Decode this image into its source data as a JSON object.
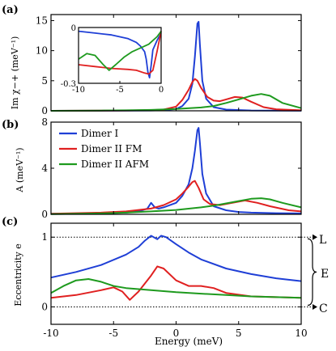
{
  "chart_data": [
    {
      "type": "line",
      "panel_label": "(a)",
      "ylabel": "Im χ−+ (meV⁻¹)",
      "xlim": [
        -10,
        10
      ],
      "ylim": [
        0,
        16
      ],
      "yticks": [
        "0",
        "5",
        "10",
        "15"
      ],
      "series": [
        {
          "color": "#1f3fd6",
          "x": [
            -10,
            -6,
            -4,
            -2,
            -1,
            0,
            0.5,
            1,
            1.3,
            1.5,
            1.7,
            1.8,
            1.9,
            2.1,
            2.4,
            3,
            4,
            6,
            8,
            10
          ],
          "y": [
            0,
            0.02,
            0.03,
            0.05,
            0.1,
            0.3,
            0.8,
            2,
            4.5,
            9,
            14.5,
            14.8,
            11,
            5,
            2,
            0.6,
            0.2,
            0.06,
            0.03,
            0.02
          ]
        },
        {
          "color": "#e02020",
          "x": [
            -10,
            -6,
            -4,
            -2,
            -1,
            0,
            0.5,
            1,
            1.3,
            1.5,
            1.7,
            2,
            2.5,
            3,
            3.5,
            4,
            4.7,
            5.3,
            6,
            7,
            8,
            10
          ],
          "y": [
            0,
            0.03,
            0.05,
            0.1,
            0.2,
            0.7,
            1.8,
            3.5,
            4.8,
            5.3,
            5,
            3.8,
            2.3,
            1.7,
            1.6,
            1.9,
            2.3,
            2.2,
            1.5,
            0.6,
            0.25,
            0.08
          ]
        },
        {
          "color": "#1e9a1e",
          "x": [
            -10,
            -6,
            -4,
            -2,
            0,
            2,
            3,
            4,
            5,
            6,
            6.8,
            7.5,
            8.5,
            10
          ],
          "y": [
            0,
            0.04,
            0.08,
            0.15,
            0.3,
            0.55,
            0.8,
            1.3,
            1.9,
            2.5,
            2.8,
            2.5,
            1.3,
            0.45
          ]
        }
      ],
      "inset": {
        "xlim": [
          -10,
          0
        ],
        "ylim": [
          -0.3,
          0
        ],
        "xticks": [
          "-10",
          "-5",
          "0"
        ],
        "yticks": [
          "0",
          "-0.3"
        ],
        "series": [
          {
            "color": "#1f3fd6",
            "x": [
              -10,
              -8,
              -6,
              -4,
              -3,
              -2.5,
              -2,
              -1.8,
              -1.6,
              -1.4,
              -1.2,
              -1,
              -0.5,
              0
            ],
            "y": [
              -0.02,
              -0.03,
              -0.04,
              -0.06,
              -0.08,
              -0.1,
              -0.13,
              -0.17,
              -0.24,
              -0.27,
              -0.2,
              -0.12,
              -0.07,
              -0.03
            ]
          },
          {
            "color": "#e02020",
            "x": [
              -10,
              -8,
              -6,
              -4,
              -3,
              -2,
              -1.5,
              -1,
              -0.5,
              0
            ],
            "y": [
              -0.2,
              -0.21,
              -0.22,
              -0.225,
              -0.23,
              -0.245,
              -0.25,
              -0.23,
              -0.13,
              -0.02
            ]
          },
          {
            "color": "#1e9a1e",
            "x": [
              -10,
              -9,
              -8,
              -7,
              -6.3,
              -5.5,
              -4.5,
              -3.5,
              -2.5,
              -1.5,
              -1,
              -0.5,
              0
            ],
            "y": [
              -0.17,
              -0.14,
              -0.15,
              -0.2,
              -0.23,
              -0.2,
              -0.16,
              -0.13,
              -0.11,
              -0.09,
              -0.07,
              -0.05,
              -0.02
            ]
          }
        ]
      }
    },
    {
      "type": "line",
      "panel_label": "(b)",
      "ylabel": "A (meV⁻¹)",
      "xlim": [
        -10,
        10
      ],
      "ylim": [
        0,
        8
      ],
      "yticks": [
        "0",
        "4",
        "8"
      ],
      "legend": {
        "placement": "top-left",
        "entries": [
          {
            "label": "Dimer I",
            "color": "#1f3fd6"
          },
          {
            "label": "Dimer II FM",
            "color": "#e02020"
          },
          {
            "label": "Dimer II AFM",
            "color": "#1e9a1e"
          }
        ]
      },
      "series": [
        {
          "color": "#1f3fd6",
          "x": [
            -10,
            -6,
            -4,
            -3,
            -2.3,
            -2,
            -1.7,
            -1.4,
            -1,
            0,
            0.5,
            1,
            1.3,
            1.5,
            1.7,
            1.8,
            1.9,
            2.1,
            2.4,
            3,
            4,
            5,
            6,
            8,
            10
          ],
          "y": [
            0.05,
            0.1,
            0.15,
            0.25,
            0.5,
            1,
            0.6,
            0.5,
            0.6,
            1,
            1.6,
            2.6,
            4,
            5.5,
            7.3,
            7.5,
            6.2,
            3.5,
            1.8,
            0.7,
            0.35,
            0.2,
            0.15,
            0.1,
            0.08
          ]
        },
        {
          "color": "#e02020",
          "x": [
            -10,
            -6,
            -4,
            -2,
            -1,
            0,
            0.5,
            1,
            1.3,
            1.5,
            1.8,
            2.2,
            2.7,
            3.5,
            4.5,
            5.5,
            6.5,
            7.5,
            9,
            10
          ],
          "y": [
            0.05,
            0.15,
            0.25,
            0.5,
            0.8,
            1.3,
            1.8,
            2.4,
            2.8,
            2.9,
            2.3,
            1.3,
            0.9,
            0.8,
            1,
            1.2,
            1,
            0.7,
            0.35,
            0.25
          ]
        },
        {
          "color": "#1e9a1e",
          "x": [
            -10,
            -6,
            -4,
            -2,
            0,
            2,
            3,
            4,
            5,
            6,
            6.8,
            7.5,
            8.5,
            10
          ],
          "y": [
            0.02,
            0.08,
            0.15,
            0.25,
            0.38,
            0.6,
            0.75,
            0.95,
            1.15,
            1.35,
            1.4,
            1.3,
            1,
            0.6
          ]
        }
      ]
    },
    {
      "type": "line",
      "panel_label": "(c)",
      "ylabel": "Eccentricity e",
      "xlabel": "Energy (meV)",
      "xlim": [
        -10,
        10
      ],
      "ylim": [
        -0.25,
        1.2
      ],
      "xticks": [
        "-10",
        "-5",
        "0",
        "5",
        "10"
      ],
      "yticks": [
        "0",
        "1"
      ],
      "reference_lines": [
        0,
        1
      ],
      "right_labels": {
        "top": "L",
        "middle": "E",
        "bottom": "C"
      },
      "series": [
        {
          "color": "#1f3fd6",
          "x": [
            -10,
            -8,
            -6,
            -4,
            -3,
            -2.5,
            -2,
            -1.5,
            -1.2,
            -0.8,
            0,
            1,
            2,
            4,
            6,
            8,
            10
          ],
          "y": [
            0.42,
            0.5,
            0.6,
            0.75,
            0.86,
            0.95,
            1.02,
            0.97,
            1.02,
            1.0,
            0.9,
            0.78,
            0.68,
            0.55,
            0.47,
            0.41,
            0.37
          ]
        },
        {
          "color": "#e02020",
          "x": [
            -10,
            -8,
            -6,
            -5,
            -4.3,
            -3.7,
            -3,
            -2,
            -1.5,
            -1,
            0,
            1,
            2,
            3,
            4,
            6,
            8,
            10
          ],
          "y": [
            0.13,
            0.17,
            0.24,
            0.28,
            0.22,
            0.1,
            0.22,
            0.45,
            0.58,
            0.55,
            0.38,
            0.3,
            0.3,
            0.27,
            0.2,
            0.15,
            0.14,
            0.13
          ]
        },
        {
          "color": "#1e9a1e",
          "x": [
            -10,
            -9,
            -8,
            -7,
            -6,
            -5,
            -4,
            -2,
            0,
            2,
            4,
            6,
            8,
            10
          ],
          "y": [
            0.2,
            0.3,
            0.38,
            0.4,
            0.36,
            0.3,
            0.27,
            0.24,
            0.21,
            0.19,
            0.17,
            0.15,
            0.14,
            0.13
          ]
        }
      ]
    }
  ]
}
